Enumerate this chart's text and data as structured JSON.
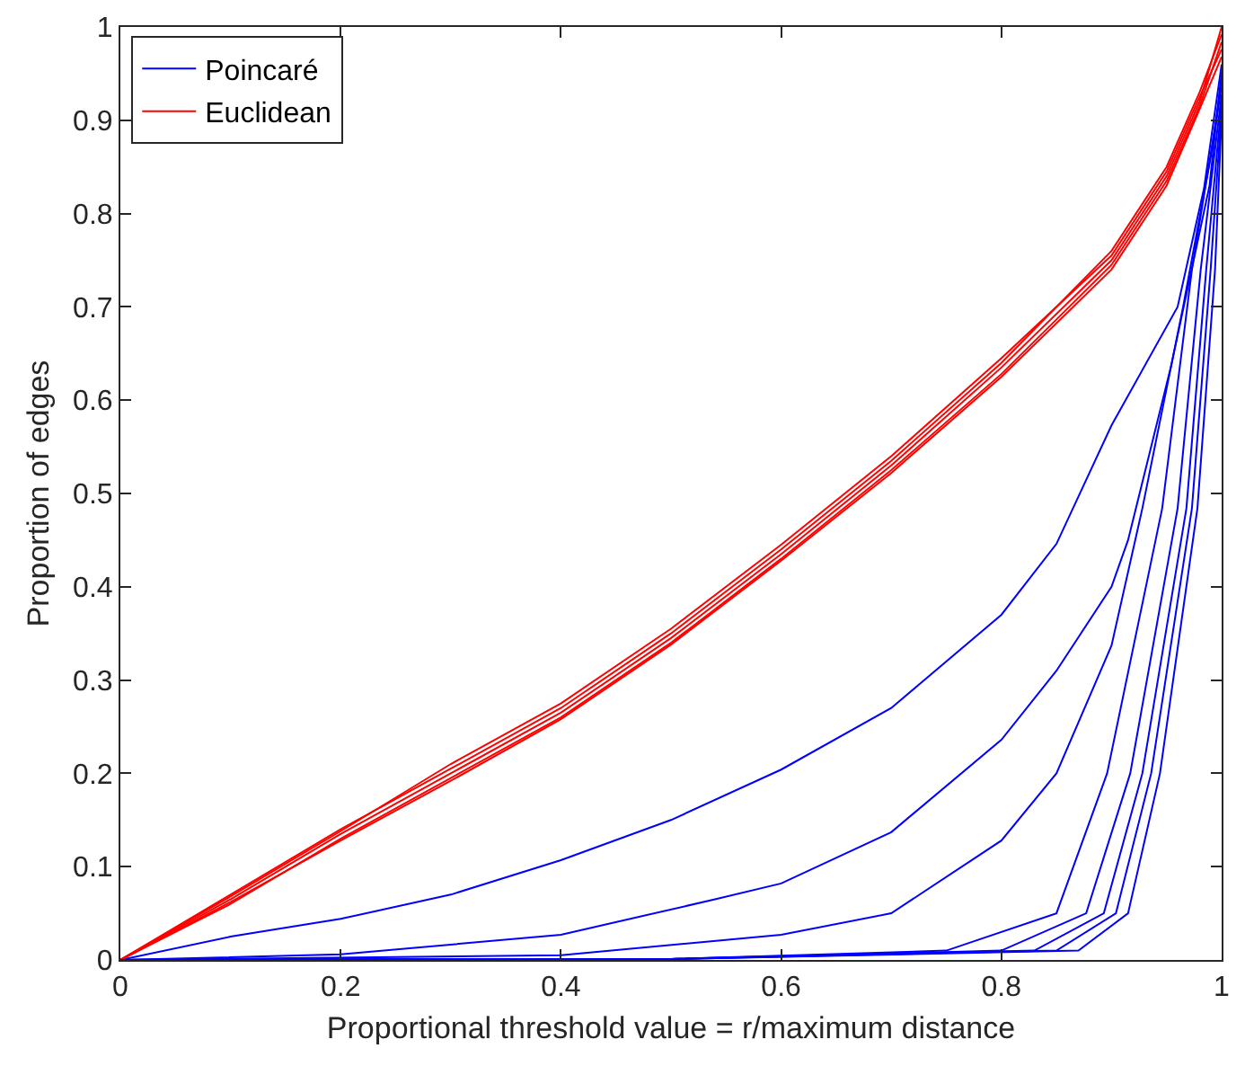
{
  "chart_data": {
    "type": "line",
    "xlabel": "Proportional threshold value = r/maximum distance",
    "ylabel": "Proportion of edges",
    "xlim": [
      0,
      1
    ],
    "ylim": [
      0,
      1
    ],
    "xticks": [
      0,
      0.2,
      0.4,
      0.6,
      0.8,
      1
    ],
    "yticks": [
      0,
      0.1,
      0.2,
      0.3,
      0.4,
      0.5,
      0.6,
      0.7,
      0.8,
      0.9,
      1
    ],
    "legend": "top left",
    "marker": "none",
    "line_style": "solid",
    "series": [
      {
        "name": "Poincaré",
        "color": "#0000ff",
        "x": [
          0,
          0.1,
          0.2,
          0.3,
          0.4,
          0.5,
          0.6,
          0.7,
          0.8,
          0.85,
          0.9,
          0.96,
          0.984,
          1
        ],
        "values": [
          0,
          0.025,
          0.044,
          0.07,
          0.107,
          0.15,
          0.204,
          0.27,
          0.37,
          0.446,
          0.573,
          0.7,
          0.827,
          0.96
        ]
      },
      {
        "name": "Euclidean",
        "color": "#ff0000",
        "x": [
          0,
          0.1,
          0.2,
          0.3,
          0.4,
          0.5,
          0.6,
          0.7,
          0.8,
          0.9,
          0.95,
          0.98,
          1
        ],
        "values": [
          0,
          0.065,
          0.135,
          0.2,
          0.265,
          0.345,
          0.435,
          0.53,
          0.635,
          0.75,
          0.84,
          0.92,
          1
        ]
      },
      {
        "color": "#ff0000",
        "x": [
          0,
          0.1,
          0.2,
          0.3,
          0.4,
          0.5,
          0.6,
          0.7,
          0.8,
          0.9,
          0.95,
          0.98,
          1
        ],
        "values": [
          0,
          0.07,
          0.14,
          0.205,
          0.27,
          0.35,
          0.44,
          0.535,
          0.64,
          0.76,
          0.85,
          0.93,
          0.992
        ]
      },
      {
        "color": "#ff0000",
        "x": [
          0,
          0.1,
          0.2,
          0.3,
          0.4,
          0.5,
          0.6,
          0.7,
          0.8,
          0.9,
          0.95,
          0.98,
          1
        ],
        "values": [
          0,
          0.06,
          0.13,
          0.195,
          0.26,
          0.34,
          0.43,
          0.525,
          0.628,
          0.745,
          0.835,
          0.915,
          0.984
        ]
      },
      {
        "color": "#ff0000",
        "x": [
          0,
          0.1,
          0.2,
          0.3,
          0.4,
          0.5,
          0.6,
          0.7,
          0.8,
          0.9,
          0.95,
          0.98,
          1
        ],
        "values": [
          0,
          0.068,
          0.138,
          0.21,
          0.275,
          0.355,
          0.445,
          0.54,
          0.645,
          0.755,
          0.845,
          0.925,
          0.976
        ]
      },
      {
        "color": "#ff0000",
        "x": [
          0,
          0.1,
          0.2,
          0.3,
          0.4,
          0.5,
          0.6,
          0.7,
          0.8,
          0.9,
          0.95,
          0.98,
          1
        ],
        "values": [
          0,
          0.062,
          0.128,
          0.192,
          0.258,
          0.338,
          0.428,
          0.522,
          0.625,
          0.74,
          0.83,
          0.912,
          0.968
        ]
      },
      {
        "color": "#0000ff",
        "x": [
          0,
          0.2,
          0.4,
          0.54,
          0.6,
          0.7,
          0.8,
          0.85,
          0.9,
          0.915,
          0.954,
          0.989,
          1
        ],
        "values": [
          0,
          0.006,
          0.027,
          0.065,
          0.082,
          0.137,
          0.236,
          0.31,
          0.4,
          0.45,
          0.636,
          0.83,
          0.952
        ]
      },
      {
        "color": "#0000ff",
        "x": [
          0,
          0.4,
          0.6,
          0.7,
          0.8,
          0.85,
          0.9,
          0.928,
          0.965,
          0.99,
          1
        ],
        "values": [
          0,
          0.005,
          0.027,
          0.05,
          0.128,
          0.2,
          0.337,
          0.484,
          0.7,
          0.86,
          0.944
        ]
      },
      {
        "color": "#0000ff",
        "x": [
          0,
          0.5,
          0.75,
          0.85,
          0.896,
          0.946,
          0.973,
          1
        ],
        "values": [
          0,
          0.001,
          0.01,
          0.05,
          0.2,
          0.484,
          0.74,
          0.936
        ]
      },
      {
        "color": "#0000ff",
        "x": [
          0,
          0.5,
          0.8,
          0.877,
          0.917,
          0.96,
          0.981,
          1
        ],
        "values": [
          0,
          0.001,
          0.01,
          0.05,
          0.2,
          0.484,
          0.74,
          0.928
        ]
      },
      {
        "color": "#0000ff",
        "x": [
          0,
          0.5,
          0.83,
          0.893,
          0.928,
          0.968,
          0.986,
          1
        ],
        "values": [
          0,
          0.001,
          0.01,
          0.05,
          0.2,
          0.484,
          0.74,
          0.92
        ]
      },
      {
        "color": "#0000ff",
        "x": [
          0,
          0.5,
          0.85,
          0.904,
          0.936,
          0.973,
          0.99,
          1
        ],
        "values": [
          0,
          0.001,
          0.01,
          0.05,
          0.2,
          0.484,
          0.74,
          0.912
        ]
      },
      {
        "color": "#0000ff",
        "x": [
          0,
          0.5,
          0.87,
          0.915,
          0.944,
          0.978,
          0.994,
          1
        ],
        "values": [
          0,
          0.001,
          0.01,
          0.05,
          0.2,
          0.484,
          0.74,
          0.904
        ]
      }
    ]
  }
}
